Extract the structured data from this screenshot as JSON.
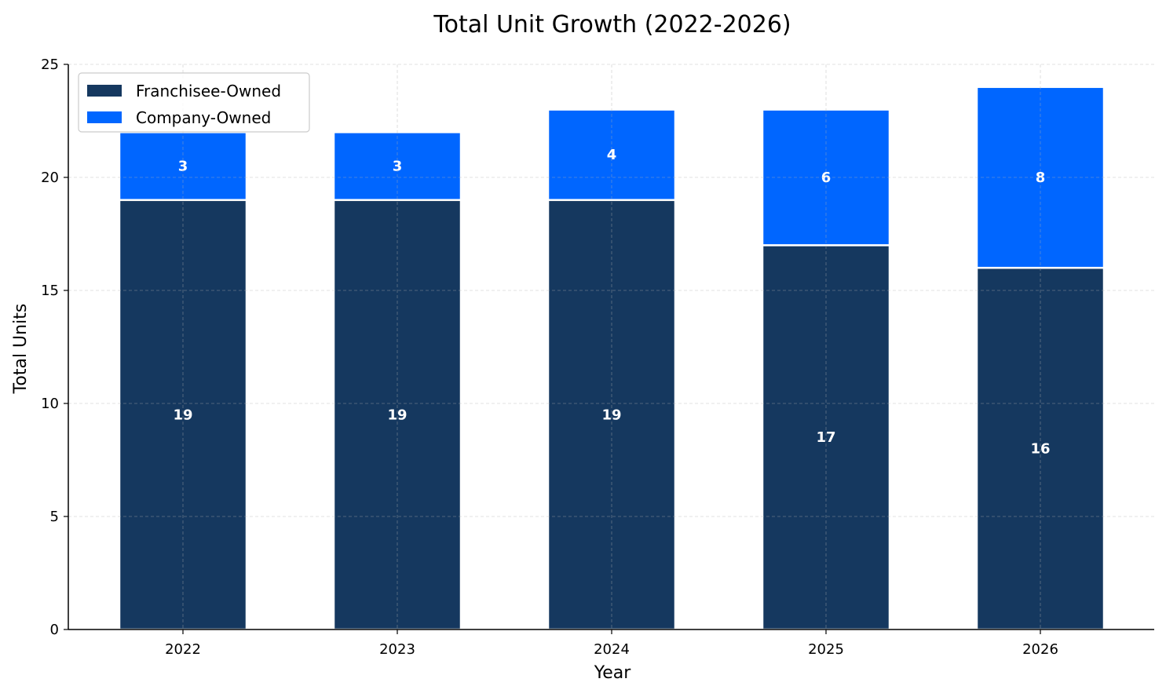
{
  "chart_data": {
    "type": "bar",
    "stacked": true,
    "title": "Total Unit Growth (2022-2026)",
    "xlabel": "Year",
    "ylabel": "Total Units",
    "categories": [
      "2022",
      "2023",
      "2024",
      "2025",
      "2026"
    ],
    "series": [
      {
        "name": "Franchisee-Owned",
        "values": [
          19,
          19,
          19,
          17,
          16
        ],
        "color": "#15385f"
      },
      {
        "name": "Company-Owned",
        "values": [
          3,
          3,
          4,
          6,
          8
        ],
        "color": "#0066ff"
      }
    ],
    "ylim": [
      0,
      25
    ],
    "yticks": [
      0,
      5,
      10,
      15,
      20,
      25
    ],
    "grid": true,
    "legend_position": "top-left",
    "bar_labels": true
  }
}
